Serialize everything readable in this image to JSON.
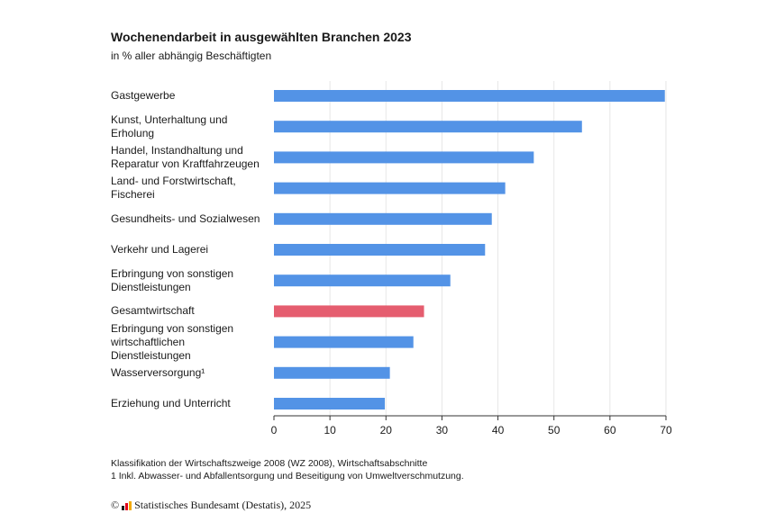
{
  "title": "Wochenendarbeit in ausgewählten Branchen 2023",
  "subtitle": "in % aller abhängig Beschäftigten",
  "notes": [
    "Klassifikation der Wirtschaftszweige 2008 (WZ 2008), Wirtschaftsabschnitte",
    "1 Inkl. Abwasser- und Abfallentsorgung und Beseitigung von Umweltverschmutzung."
  ],
  "footer": {
    "copyright_symbol": "©",
    "source": "Statistisches Bundesamt (Destatis), 2025"
  },
  "colors": {
    "bar": "#5393e6",
    "highlight": "#e55d6f",
    "grid": "#e6e6e6",
    "axis": "#333333"
  },
  "chart_data": {
    "type": "bar",
    "orientation": "horizontal",
    "title": "Wochenendarbeit in ausgewählten Branchen 2023",
    "subtitle": "in % aller abhängig Beschäftigten",
    "categories": [
      "Gastgewerbe",
      "Kunst, Unterhaltung und Erholung",
      "Handel, Instandhaltung und Reparatur von Kraftfahrzeugen",
      "Land- und Forstwirtschaft, Fischerei",
      "Gesundheits- und Sozialwesen",
      "Verkehr und Lagerei",
      "Erbringung von sonstigen Dienstleistungen",
      "Gesamtwirtschaft",
      "Erbringung von sonstigen wirtschaftlichen Dienstleistungen",
      "Wasserversorgung¹",
      "Erziehung und Unterricht"
    ],
    "category_lines": [
      [
        "Gastgewerbe"
      ],
      [
        "Kunst, Unterhaltung und",
        "Erholung"
      ],
      [
        "Handel, Instandhaltung und",
        "Reparatur von Kraftfahrzeugen"
      ],
      [
        "Land- und Forstwirtschaft,",
        "Fischerei"
      ],
      [
        "Gesundheits- und Sozialwesen"
      ],
      [
        "Verkehr und Lagerei"
      ],
      [
        "Erbringung von sonstigen",
        "Dienstleistungen"
      ],
      [
        "Gesamtwirtschaft"
      ],
      [
        "Erbringung von sonstigen",
        "wirtschaftlichen",
        "Dienstleistungen"
      ],
      [
        "Wasserversorgung¹"
      ],
      [
        "Erziehung und Unterricht"
      ]
    ],
    "values": [
      69.8,
      55.0,
      46.4,
      41.3,
      38.9,
      37.7,
      31.5,
      26.8,
      24.9,
      20.7,
      19.8
    ],
    "highlight_index": 7,
    "xlim": [
      0,
      70
    ],
    "xticks": [
      0,
      10,
      20,
      30,
      40,
      50,
      60,
      70
    ],
    "xlabel": "",
    "ylabel": "",
    "grid": true
  }
}
